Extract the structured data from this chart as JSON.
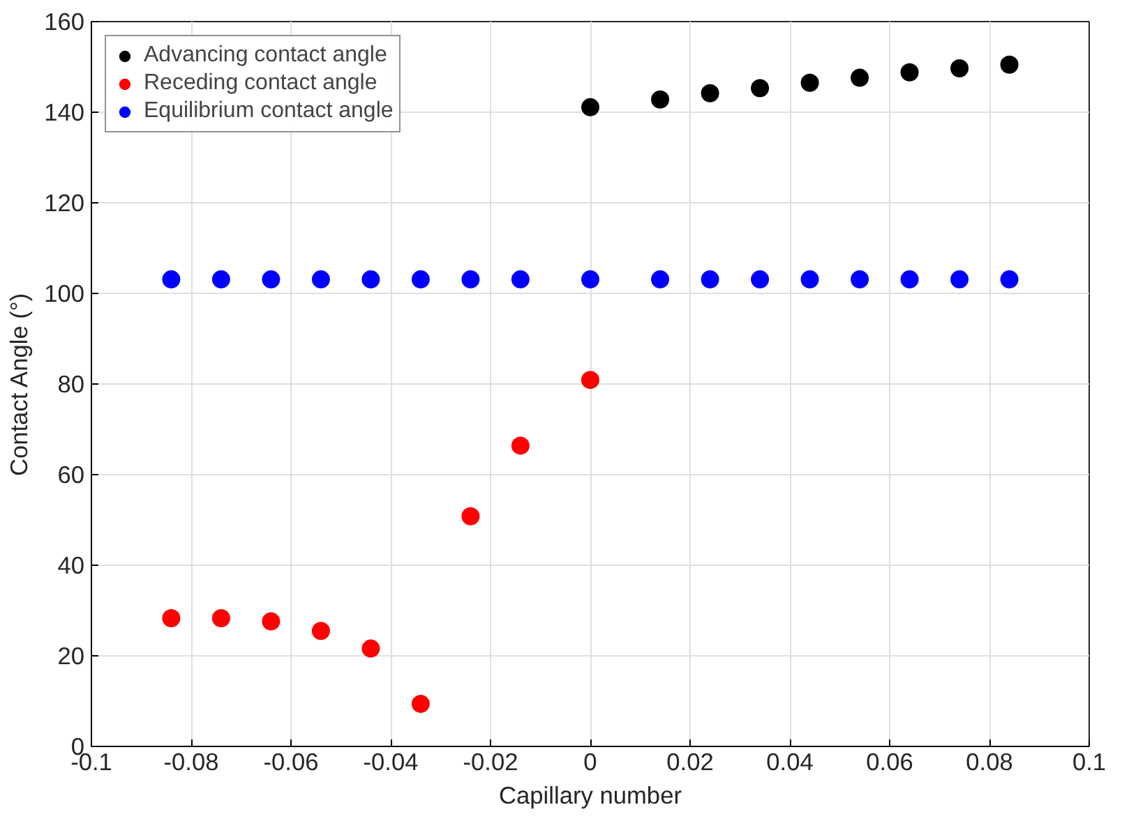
{
  "chart_data": {
    "type": "scatter",
    "xlabel": "Capillary number",
    "ylabel": "Contact Angle (°)",
    "xlim": [
      -0.1,
      0.1
    ],
    "xticks": [
      -0.1,
      -0.08,
      -0.06,
      -0.04,
      -0.02,
      0,
      0.02,
      0.04,
      0.06,
      0.08,
      0.1
    ],
    "ylim": [
      0,
      160
    ],
    "yticks": [
      0,
      20,
      40,
      60,
      80,
      100,
      120,
      140,
      160
    ],
    "grid": true,
    "legend": "top left",
    "marker": "circle",
    "series": [
      {
        "name": "Advancing contact angle",
        "color": "#000000",
        "x": [
          0,
          0.014,
          0.024,
          0.034,
          0.044,
          0.054,
          0.064,
          0.074,
          0.084
        ],
        "values": [
          141.1,
          142.8,
          144.2,
          145.3,
          146.5,
          147.6,
          148.8,
          149.7,
          150.5
        ]
      },
      {
        "name": "Receding contact angle",
        "color": "#ff0000",
        "x": [
          -0.084,
          -0.074,
          -0.064,
          -0.054,
          -0.044,
          -0.034,
          -0.024,
          -0.014,
          0
        ],
        "values": [
          28.3,
          28.3,
          27.6,
          25.5,
          21.6,
          9.4,
          50.8,
          66.4,
          80.9
        ]
      },
      {
        "name": "Equilibrium contact angle",
        "color": "#0000ff",
        "x": [
          -0.084,
          -0.074,
          -0.064,
          -0.054,
          -0.044,
          -0.034,
          -0.024,
          -0.014,
          0,
          0.014,
          0.024,
          0.034,
          0.044,
          0.054,
          0.064,
          0.074,
          0.084
        ],
        "values": [
          103.1,
          103.1,
          103.1,
          103.1,
          103.1,
          103.1,
          103.1,
          103.1,
          103.1,
          103.1,
          103.1,
          103.1,
          103.1,
          103.1,
          103.1,
          103.1,
          103.1
        ]
      }
    ]
  }
}
